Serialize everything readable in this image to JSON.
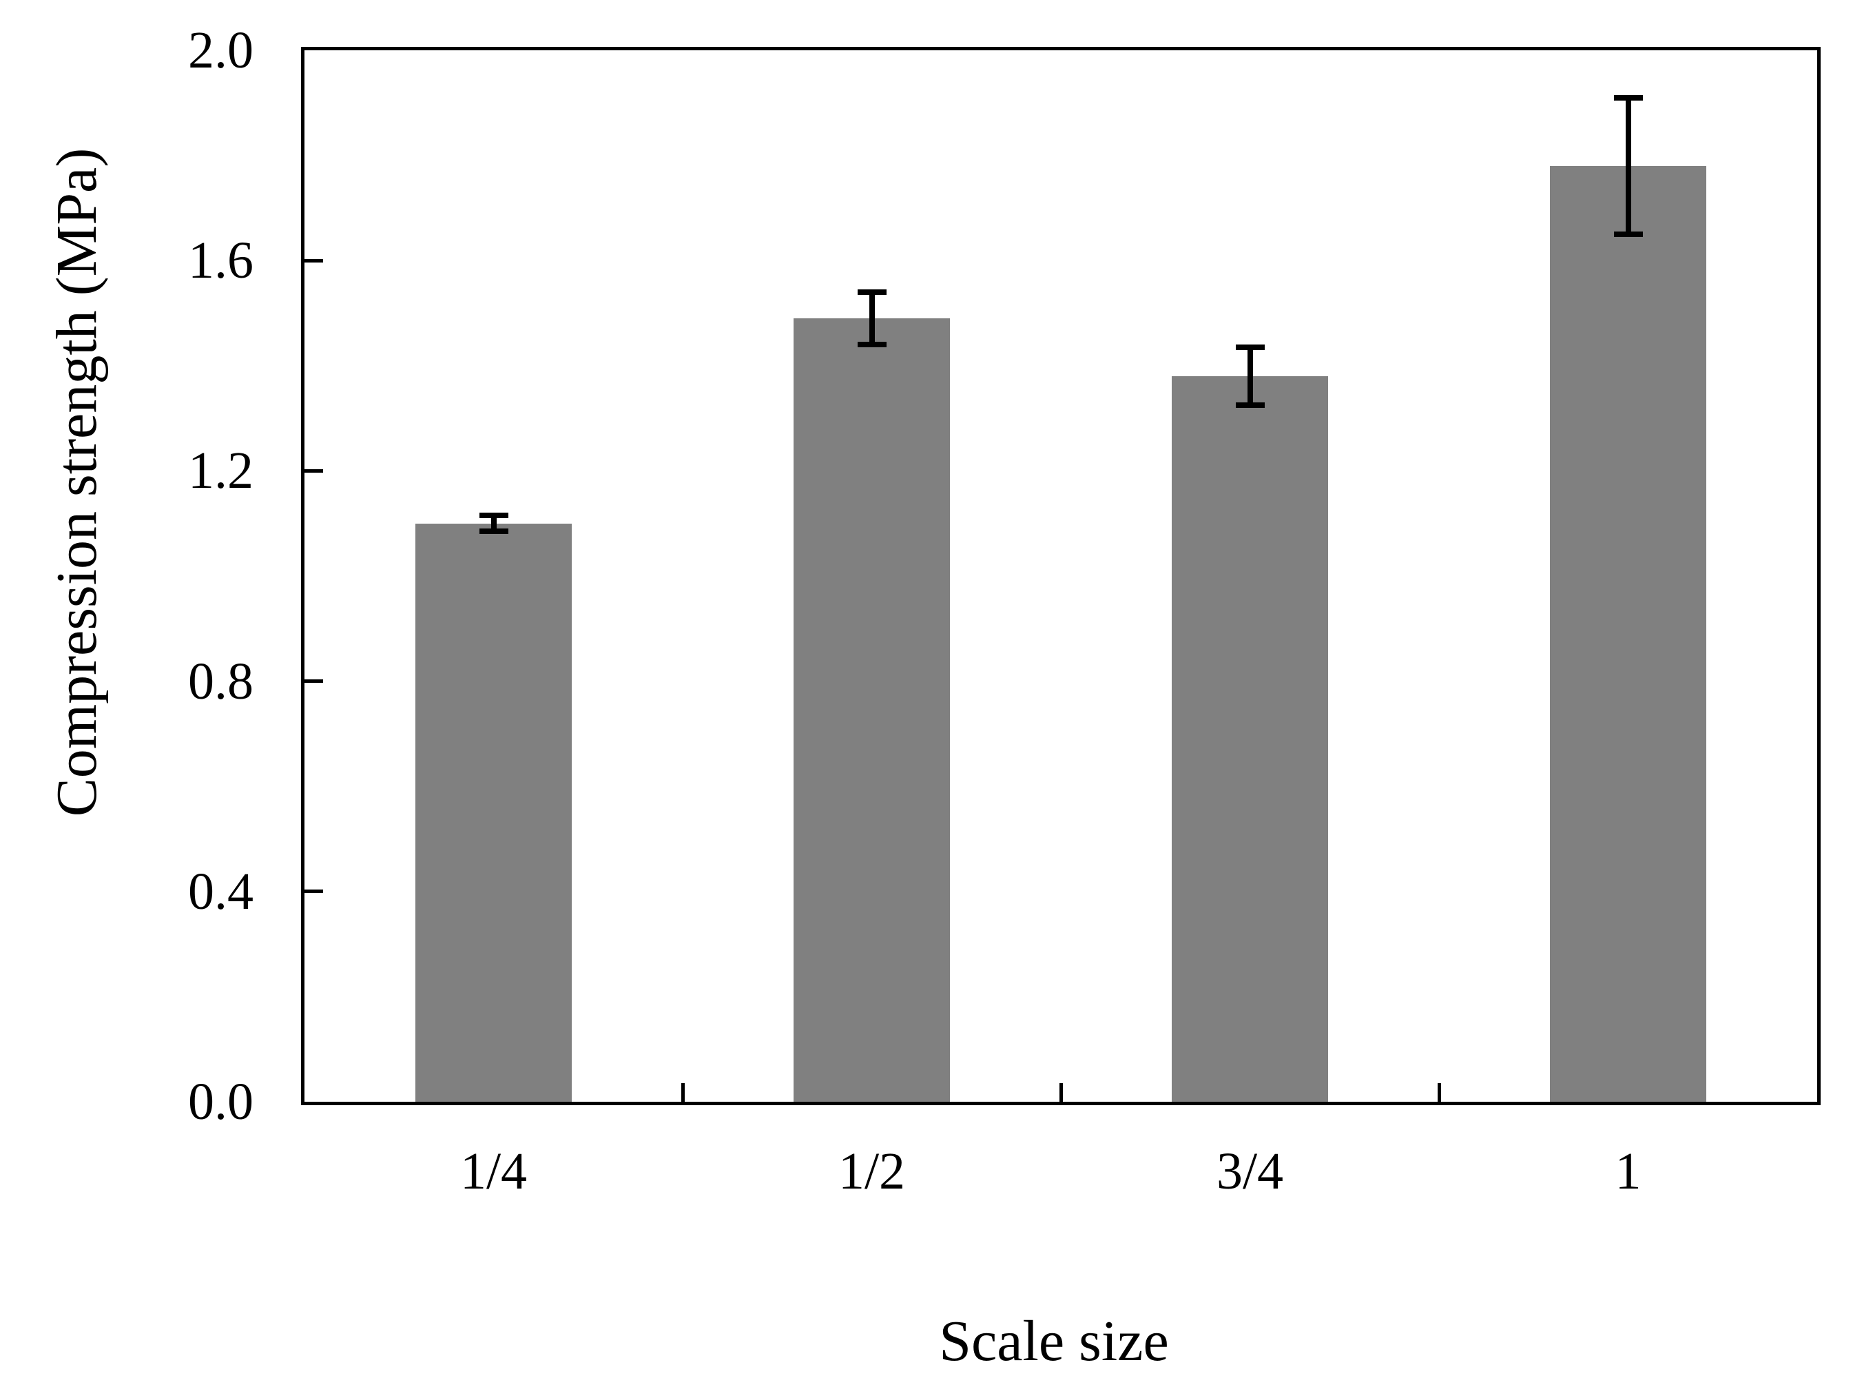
{
  "figure": {
    "background": "#ffffff",
    "text_color": "#000000"
  },
  "chart_data": {
    "type": "bar",
    "title": "",
    "xlabel": "Scale size",
    "ylabel": "Compression strength (MPa)",
    "categories": [
      "1/4",
      "1/2",
      "3/4",
      "1"
    ],
    "values": [
      1.1,
      1.49,
      1.38,
      1.78
    ],
    "errors": [
      0.015,
      0.05,
      0.055,
      0.13
    ],
    "ylim": [
      0.0,
      2.0
    ],
    "ytick_step": 0.4,
    "ytick_labels": [
      "0.0",
      "0.4",
      "0.8",
      "1.2",
      "1.6",
      "2.0"
    ],
    "bar_color": "#808080",
    "axis_color": "#000000",
    "error_bar_color": "#000000",
    "grid": false,
    "legend": null,
    "layout_hints": {
      "ticks_inward": true,
      "frame_on_all_sides": true,
      "x_ticks_at_category_boundaries": true
    }
  }
}
